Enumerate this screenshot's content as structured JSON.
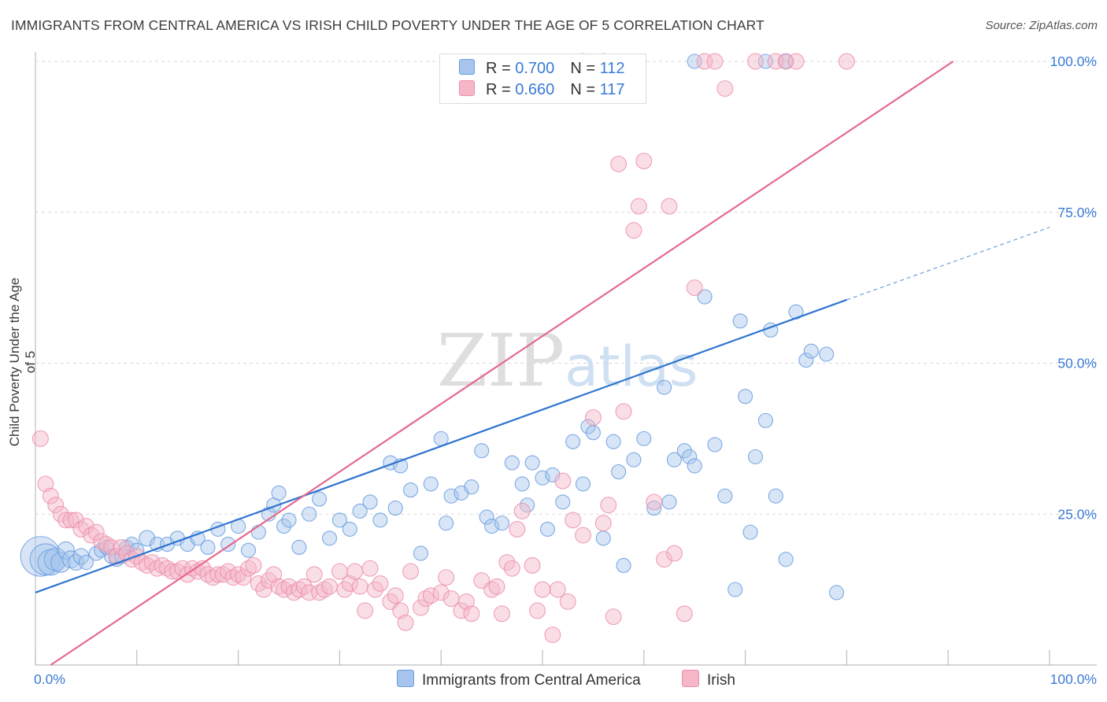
{
  "title": "IMMIGRANTS FROM CENTRAL AMERICA VS IRISH CHILD POVERTY UNDER THE AGE OF 5 CORRELATION CHART",
  "source": "Source: ZipAtlas.com",
  "watermark": "ZIPatlas",
  "legend_top": {
    "rows": [
      {
        "r_label": "R = ",
        "r_value": "0.700",
        "n_label": "N = ",
        "n_value": "112",
        "color": "#a7c5ec"
      },
      {
        "r_label": "R = ",
        "r_value": "0.660",
        "n_label": "N = ",
        "n_value": "117",
        "color": "#f5b6c8"
      }
    ]
  },
  "chart_data": {
    "type": "scatter",
    "title": "IMMIGRANTS FROM CENTRAL AMERICA VS IRISH CHILD POVERTY UNDER THE AGE OF 5 CORRELATION CHART",
    "xlabel": "",
    "ylabel": "Child Poverty Under the Age of 5",
    "xlim": [
      0,
      100
    ],
    "ylim": [
      0,
      100
    ],
    "x_tick_labels": [
      "0.0%",
      "100.0%"
    ],
    "y_tick_labels": [
      "25.0%",
      "50.0%",
      "75.0%",
      "100.0%"
    ],
    "y_ticks": [
      25,
      50,
      75,
      100
    ],
    "grid": "horizontal dashed",
    "legend_position": "bottom",
    "series": [
      {
        "name": "Immigrants from Central America",
        "color": "#6a9de0",
        "fill": "#a7c5ec",
        "trend": {
          "x0": 0,
          "y0": 12,
          "x1": 80,
          "y1": 60.5,
          "dashed_to_x": 100,
          "dashed_to_y": 72.5,
          "color": "#2f74d0"
        },
        "points": [
          [
            0.5,
            18,
            28
          ],
          [
            1,
            17.5,
            22
          ],
          [
            1.5,
            17,
            18
          ],
          [
            2,
            17.5,
            16
          ],
          [
            2.5,
            17,
            14
          ],
          [
            3,
            19,
            12
          ],
          [
            3.5,
            17.5,
            12
          ],
          [
            4,
            17,
            11
          ],
          [
            4.5,
            18,
            11
          ],
          [
            5,
            17,
            10
          ],
          [
            6,
            18.5,
            10
          ],
          [
            6.5,
            19,
            10
          ],
          [
            7,
            19.5,
            10
          ],
          [
            7.5,
            18,
            10
          ],
          [
            8,
            17.5,
            10
          ],
          [
            8.5,
            18,
            10
          ],
          [
            9,
            19.5,
            10
          ],
          [
            9.5,
            20,
            10
          ],
          [
            10,
            19,
            10
          ],
          [
            11,
            21,
            11
          ],
          [
            12,
            20,
            10
          ],
          [
            13,
            20,
            10
          ],
          [
            14,
            21,
            10
          ],
          [
            15,
            20,
            10
          ],
          [
            16,
            21,
            10
          ],
          [
            17,
            19.5,
            10
          ],
          [
            18,
            22.5,
            10
          ],
          [
            19,
            20,
            10
          ],
          [
            20,
            23,
            10
          ],
          [
            21,
            19,
            10
          ],
          [
            22,
            22,
            10
          ],
          [
            23,
            25,
            10
          ],
          [
            23.5,
            26.5,
            10
          ],
          [
            24,
            28.5,
            10
          ],
          [
            24.5,
            23,
            10
          ],
          [
            25,
            24,
            10
          ],
          [
            26,
            19.5,
            10
          ],
          [
            27,
            25,
            10
          ],
          [
            28,
            27.5,
            10
          ],
          [
            29,
            21,
            10
          ],
          [
            30,
            24,
            10
          ],
          [
            31,
            22.5,
            10
          ],
          [
            32,
            25.5,
            10
          ],
          [
            33,
            27,
            10
          ],
          [
            34,
            24,
            10
          ],
          [
            35,
            33.5,
            10
          ],
          [
            35.5,
            26,
            10
          ],
          [
            36,
            33,
            10
          ],
          [
            37,
            29,
            10
          ],
          [
            38,
            18.5,
            10
          ],
          [
            39,
            30,
            10
          ],
          [
            40,
            37.5,
            10
          ],
          [
            40.5,
            23.5,
            10
          ],
          [
            41,
            28,
            10
          ],
          [
            42,
            28.5,
            10
          ],
          [
            43,
            29.5,
            10
          ],
          [
            44,
            35.5,
            10
          ],
          [
            44.5,
            24.5,
            10
          ],
          [
            45,
            23,
            10
          ],
          [
            46,
            23.5,
            10
          ],
          [
            47,
            33.5,
            10
          ],
          [
            48,
            30,
            10
          ],
          [
            48.5,
            26.5,
            10
          ],
          [
            49,
            33.5,
            10
          ],
          [
            50,
            31,
            10
          ],
          [
            50.5,
            22.5,
            10
          ],
          [
            51,
            31.5,
            10
          ],
          [
            52,
            27,
            10
          ],
          [
            53,
            37,
            10
          ],
          [
            54,
            30,
            10
          ],
          [
            54.5,
            39.5,
            10
          ],
          [
            55,
            38.5,
            10
          ],
          [
            56,
            21,
            10
          ],
          [
            57,
            37,
            10
          ],
          [
            57.5,
            32,
            10
          ],
          [
            58,
            16.5,
            10
          ],
          [
            59,
            34,
            10
          ],
          [
            60,
            37.5,
            10
          ],
          [
            61,
            26,
            10
          ],
          [
            62,
            46,
            10
          ],
          [
            62.5,
            27,
            10
          ],
          [
            63,
            34,
            10
          ],
          [
            64,
            35.5,
            10
          ],
          [
            64.5,
            34.5,
            10
          ],
          [
            65,
            33,
            10
          ],
          [
            66,
            61,
            10
          ],
          [
            67,
            36.5,
            10
          ],
          [
            68,
            28,
            10
          ],
          [
            69,
            12.5,
            10
          ],
          [
            69.5,
            57,
            10
          ],
          [
            70,
            44.5,
            10
          ],
          [
            70.5,
            22,
            10
          ],
          [
            71,
            34.5,
            10
          ],
          [
            72,
            40.5,
            10
          ],
          [
            72.5,
            55.5,
            10
          ],
          [
            73,
            28,
            10
          ],
          [
            74,
            17.5,
            10
          ],
          [
            75,
            58.5,
            10
          ],
          [
            76,
            50.5,
            10
          ],
          [
            76.5,
            52,
            10
          ],
          [
            78,
            51.5,
            10
          ],
          [
            79,
            12,
            10
          ],
          [
            65,
            100,
            10
          ],
          [
            72,
            100,
            10
          ],
          [
            74,
            100,
            10
          ],
          [
            43,
            100,
            10
          ],
          [
            45,
            100,
            10
          ]
        ]
      },
      {
        "name": "Irish",
        "color": "#ec8fab",
        "fill": "#f5b6c8",
        "trend": {
          "x0": 1.5,
          "y0": 0,
          "x1": 90.5,
          "y1": 100,
          "color": "#e5698f"
        },
        "points": [
          [
            0.5,
            37.5,
            11
          ],
          [
            1,
            30,
            11
          ],
          [
            1.5,
            28,
            11
          ],
          [
            2,
            26.5,
            11
          ],
          [
            2.5,
            25,
            11
          ],
          [
            3,
            24,
            11
          ],
          [
            3.5,
            24,
            11
          ],
          [
            4,
            24,
            11
          ],
          [
            4.5,
            22.5,
            11
          ],
          [
            5,
            23,
            11
          ],
          [
            5.5,
            21.5,
            11
          ],
          [
            6,
            22,
            11
          ],
          [
            6.5,
            20.5,
            11
          ],
          [
            7,
            20,
            11
          ],
          [
            7.5,
            19.5,
            11
          ],
          [
            8,
            18,
            11
          ],
          [
            8.5,
            19.5,
            11
          ],
          [
            9,
            18.5,
            11
          ],
          [
            9.5,
            17.5,
            11
          ],
          [
            10,
            18,
            11
          ],
          [
            10.5,
            17,
            11
          ],
          [
            11,
            16.5,
            11
          ],
          [
            11.5,
            17,
            11
          ],
          [
            12,
            16,
            11
          ],
          [
            12.5,
            16.5,
            11
          ],
          [
            13,
            16,
            11
          ],
          [
            13.5,
            15.5,
            11
          ],
          [
            14,
            15.5,
            11
          ],
          [
            14.5,
            16,
            11
          ],
          [
            15,
            15,
            11
          ],
          [
            15.5,
            16,
            11
          ],
          [
            16,
            15.5,
            11
          ],
          [
            16.5,
            16,
            11
          ],
          [
            17,
            15,
            11
          ],
          [
            17.5,
            14.5,
            11
          ],
          [
            18,
            15,
            11
          ],
          [
            18.5,
            15,
            11
          ],
          [
            19,
            15.5,
            11
          ],
          [
            19.5,
            14.5,
            11
          ],
          [
            20,
            15,
            11
          ],
          [
            20.5,
            14.5,
            11
          ],
          [
            21,
            16,
            11
          ],
          [
            21.5,
            16.5,
            11
          ],
          [
            22,
            13.5,
            11
          ],
          [
            22.5,
            12.5,
            11
          ],
          [
            23,
            14,
            11
          ],
          [
            23.5,
            15,
            11
          ],
          [
            24,
            13,
            11
          ],
          [
            24.5,
            12.5,
            11
          ],
          [
            25,
            13,
            11
          ],
          [
            25.5,
            12,
            11
          ],
          [
            26,
            12.5,
            11
          ],
          [
            26.5,
            13,
            11
          ],
          [
            27,
            12,
            11
          ],
          [
            27.5,
            15,
            11
          ],
          [
            28,
            12,
            11
          ],
          [
            28.5,
            12.5,
            11
          ],
          [
            29,
            13,
            11
          ],
          [
            30,
            15.5,
            11
          ],
          [
            30.5,
            12.5,
            11
          ],
          [
            31,
            13.5,
            11
          ],
          [
            31.5,
            15.5,
            11
          ],
          [
            32,
            13,
            11
          ],
          [
            32.5,
            9,
            11
          ],
          [
            33,
            16,
            11
          ],
          [
            33.5,
            12.5,
            11
          ],
          [
            34,
            13.5,
            11
          ],
          [
            35,
            10.5,
            11
          ],
          [
            35.5,
            11.5,
            11
          ],
          [
            36,
            9,
            11
          ],
          [
            36.5,
            7,
            11
          ],
          [
            37,
            15.5,
            11
          ],
          [
            38,
            9.5,
            11
          ],
          [
            38.5,
            11,
            11
          ],
          [
            39,
            11.5,
            11
          ],
          [
            40,
            12,
            11
          ],
          [
            40.5,
            14.5,
            11
          ],
          [
            41,
            11,
            11
          ],
          [
            42,
            9,
            11
          ],
          [
            42.5,
            10.5,
            11
          ],
          [
            43,
            8.5,
            11
          ],
          [
            44,
            14,
            11
          ],
          [
            45,
            12.5,
            11
          ],
          [
            45.5,
            13,
            11
          ],
          [
            46,
            8.5,
            11
          ],
          [
            46.5,
            17,
            11
          ],
          [
            47,
            16,
            11
          ],
          [
            47.5,
            22.5,
            11
          ],
          [
            48,
            25.5,
            11
          ],
          [
            49,
            16.5,
            11
          ],
          [
            49.5,
            9,
            11
          ],
          [
            50,
            12.5,
            11
          ],
          [
            51,
            5,
            11
          ],
          [
            51.5,
            12.5,
            11
          ],
          [
            52,
            30.5,
            11
          ],
          [
            52.5,
            10.5,
            11
          ],
          [
            53,
            24,
            11
          ],
          [
            54,
            21.5,
            11
          ],
          [
            55,
            41,
            11
          ],
          [
            56,
            23.5,
            11
          ],
          [
            56.5,
            26.5,
            11
          ],
          [
            57,
            8,
            11
          ],
          [
            57.5,
            83,
            11
          ],
          [
            58,
            42,
            11
          ],
          [
            59,
            72,
            11
          ],
          [
            59.5,
            76,
            11
          ],
          [
            60,
            83.5,
            11
          ],
          [
            61,
            27,
            11
          ],
          [
            62,
            17.5,
            11
          ],
          [
            62.5,
            76,
            11
          ],
          [
            63,
            18.5,
            11
          ],
          [
            64,
            8.5,
            11
          ],
          [
            65,
            62.5,
            11
          ],
          [
            66,
            100,
            11
          ],
          [
            67,
            100,
            11
          ],
          [
            68,
            95.5,
            11
          ],
          [
            71,
            100,
            11
          ],
          [
            73,
            100,
            11
          ],
          [
            74,
            100,
            11
          ],
          [
            75,
            100,
            11
          ],
          [
            80,
            100,
            11
          ],
          [
            54,
            100,
            11
          ],
          [
            56,
            100,
            11
          ]
        ]
      }
    ]
  },
  "bottom_legend": [
    {
      "label": "Immigrants from Central America",
      "color": "#a7c5ec"
    },
    {
      "label": "Irish",
      "color": "#f5b6c8"
    }
  ]
}
